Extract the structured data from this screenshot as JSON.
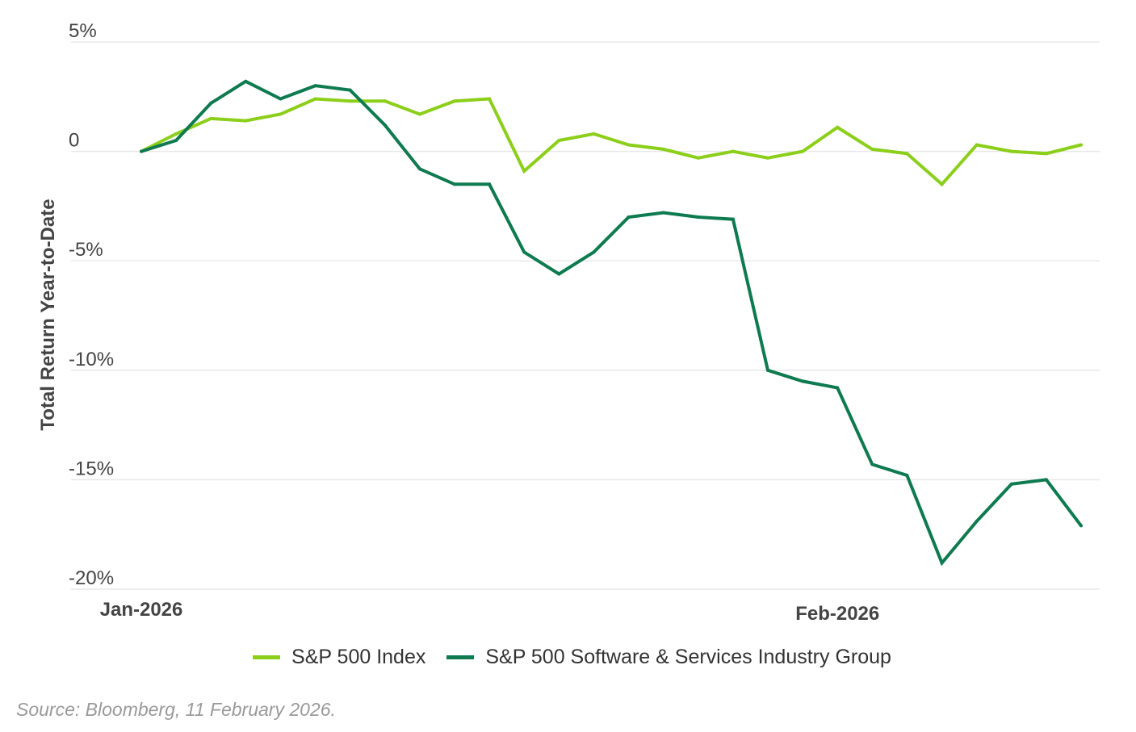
{
  "chart_data": {
    "type": "line",
    "title": "",
    "xlabel": "",
    "ylabel": "Total Return Year-to-Date",
    "ylim": [
      -20,
      5
    ],
    "yticks": [
      {
        "value": 5,
        "label": "5%"
      },
      {
        "value": 0,
        "label": "0"
      },
      {
        "value": -5,
        "label": "-5%"
      },
      {
        "value": -10,
        "label": "-10%"
      },
      {
        "value": -15,
        "label": "-15%"
      },
      {
        "value": -20,
        "label": "-20%"
      }
    ],
    "xticks": [
      {
        "index": 0,
        "label": "Jan-2026"
      },
      {
        "index": 20,
        "label": "Feb-2026"
      }
    ],
    "grid": true,
    "legend_position": "bottom-center",
    "x": [
      0,
      1,
      2,
      3,
      4,
      5,
      6,
      7,
      8,
      9,
      10,
      11,
      12,
      13,
      14,
      15,
      16,
      17,
      18,
      19,
      20,
      21,
      22,
      23,
      24,
      25,
      26,
      27
    ],
    "series": [
      {
        "name": "S&P 500 Index",
        "color": "#8ccf1a",
        "values": [
          0.0,
          0.8,
          1.5,
          1.4,
          1.7,
          2.4,
          2.3,
          2.3,
          1.7,
          2.3,
          2.4,
          -0.9,
          0.5,
          0.8,
          0.3,
          0.1,
          -0.3,
          0.0,
          -0.3,
          0.0,
          1.1,
          0.1,
          -0.1,
          -1.5,
          0.3,
          0.0,
          -0.1,
          0.3
        ]
      },
      {
        "name": "S&P 500 Software & Services Industry Group",
        "color": "#0e7a50",
        "values": [
          0.0,
          0.5,
          2.2,
          3.2,
          2.4,
          3.0,
          2.8,
          1.2,
          -0.8,
          -1.5,
          -1.5,
          -4.6,
          -5.6,
          -4.6,
          -3.0,
          -2.8,
          -3.0,
          -3.1,
          -10.0,
          -10.5,
          -10.8,
          -14.3,
          -14.8,
          -18.8,
          -16.9,
          -15.2,
          -15.0,
          -17.1
        ]
      }
    ]
  },
  "source": "Source: Bloomberg, 11 February 2026."
}
